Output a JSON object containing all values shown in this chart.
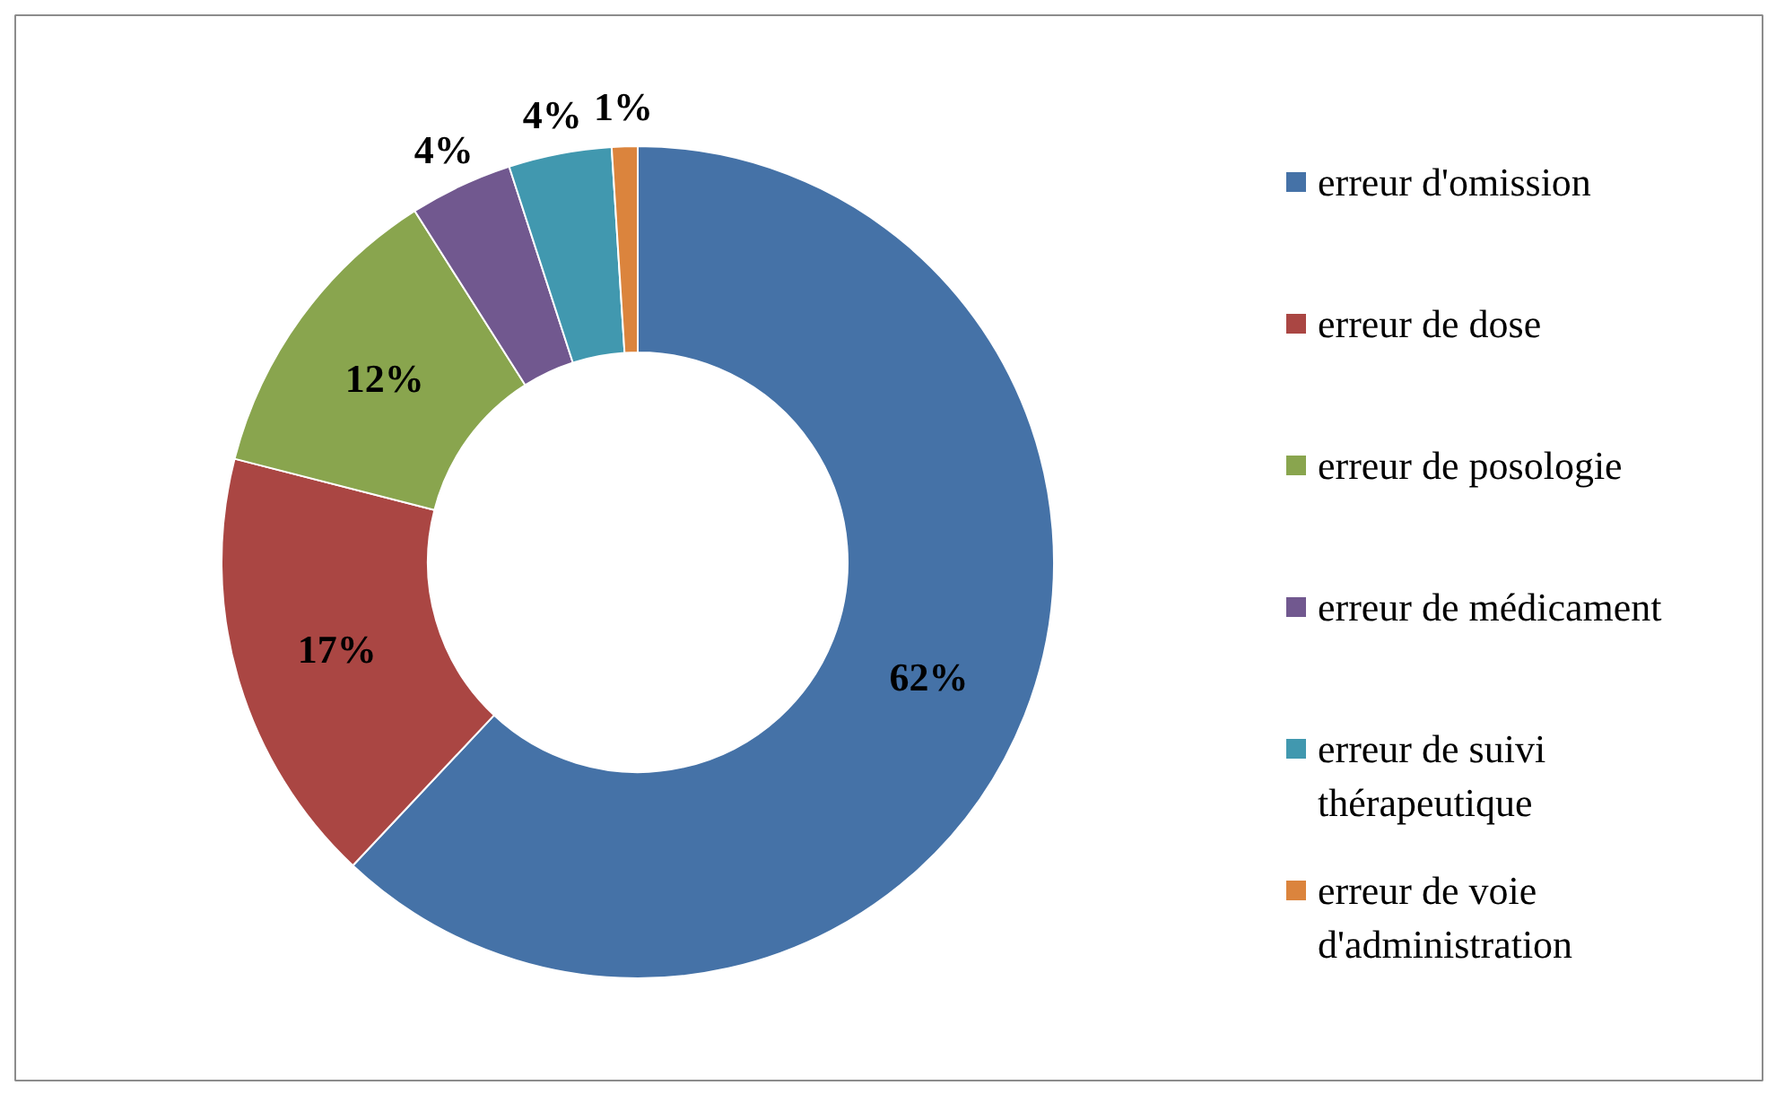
{
  "chart_data": {
    "type": "donut",
    "categories": [
      "erreur d'omission",
      "erreur de dose",
      "erreur de posologie",
      "erreur de médicament",
      "erreur de suivi thérapeutique",
      "erreur de voie d'administration"
    ],
    "values": [
      62,
      17,
      12,
      4,
      4,
      1
    ],
    "colors": [
      "#4572a7",
      "#aa4643",
      "#89a54e",
      "#71588f",
      "#4198af",
      "#db843d"
    ],
    "value_labels": [
      "62%",
      "17%",
      "12%",
      "4%",
      "4%",
      "1%"
    ],
    "legend": "right"
  }
}
